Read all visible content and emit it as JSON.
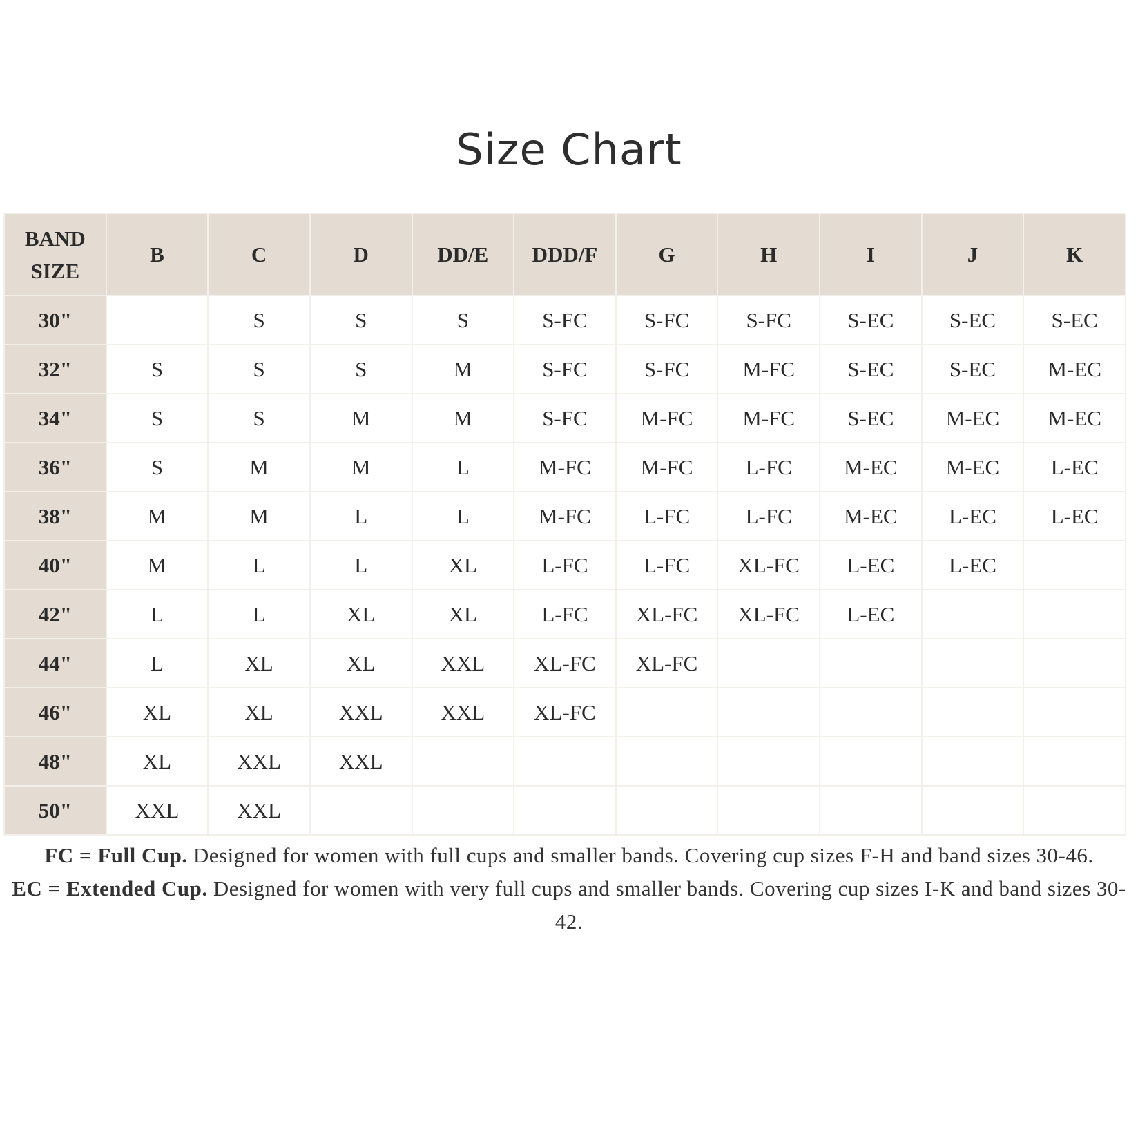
{
  "title": "Size Chart",
  "chart_data": {
    "type": "table",
    "title": "Size Chart",
    "corner_header": [
      "BAND",
      "SIZE"
    ],
    "columns": [
      "B",
      "C",
      "D",
      "DD/E",
      "DDD/F",
      "G",
      "H",
      "I",
      "J",
      "K"
    ],
    "rows": [
      {
        "band": "30\"",
        "cells": [
          "",
          "S",
          "S",
          "S",
          "S-FC",
          "S-FC",
          "S-FC",
          "S-EC",
          "S-EC",
          "S-EC"
        ]
      },
      {
        "band": "32\"",
        "cells": [
          "S",
          "S",
          "S",
          "M",
          "S-FC",
          "S-FC",
          "M-FC",
          "S-EC",
          "S-EC",
          "M-EC"
        ]
      },
      {
        "band": "34\"",
        "cells": [
          "S",
          "S",
          "M",
          "M",
          "S-FC",
          "M-FC",
          "M-FC",
          "S-EC",
          "M-EC",
          "M-EC"
        ]
      },
      {
        "band": "36\"",
        "cells": [
          "S",
          "M",
          "M",
          "L",
          "M-FC",
          "M-FC",
          "L-FC",
          "M-EC",
          "M-EC",
          "L-EC"
        ]
      },
      {
        "band": "38\"",
        "cells": [
          "M",
          "M",
          "L",
          "L",
          "M-FC",
          "L-FC",
          "L-FC",
          "M-EC",
          "L-EC",
          "L-EC"
        ]
      },
      {
        "band": "40\"",
        "cells": [
          "M",
          "L",
          "L",
          "XL",
          "L-FC",
          "L-FC",
          "XL-FC",
          "L-EC",
          "L-EC",
          ""
        ]
      },
      {
        "band": "42\"",
        "cells": [
          "L",
          "L",
          "XL",
          "XL",
          "L-FC",
          "XL-FC",
          "XL-FC",
          "L-EC",
          "",
          ""
        ]
      },
      {
        "band": "44\"",
        "cells": [
          "L",
          "XL",
          "XL",
          "XXL",
          "XL-FC",
          "XL-FC",
          "",
          "",
          "",
          ""
        ]
      },
      {
        "band": "46\"",
        "cells": [
          "XL",
          "XL",
          "XXL",
          "XXL",
          "XL-FC",
          "",
          "",
          "",
          "",
          ""
        ]
      },
      {
        "band": "48\"",
        "cells": [
          "XL",
          "XXL",
          "XXL",
          "",
          "",
          "",
          "",
          "",
          "",
          ""
        ]
      },
      {
        "band": "50\"",
        "cells": [
          "XXL",
          "XXL",
          "",
          "",
          "",
          "",
          "",
          "",
          "",
          ""
        ]
      }
    ]
  },
  "notes": [
    {
      "term": "FC = Full Cup.",
      "text": " Designed for women with full cups and smaller bands. Covering cup sizes F-H and band sizes 30-46."
    },
    {
      "term": "EC = Extended Cup.",
      "text": " Designed for women with very full cups and smaller bands. Covering cup sizes I-K and band sizes 30-42."
    }
  ],
  "colors": {
    "header_bg": "#e4dcd2",
    "text": "#2b2b2b",
    "grid": "#f3efea"
  }
}
